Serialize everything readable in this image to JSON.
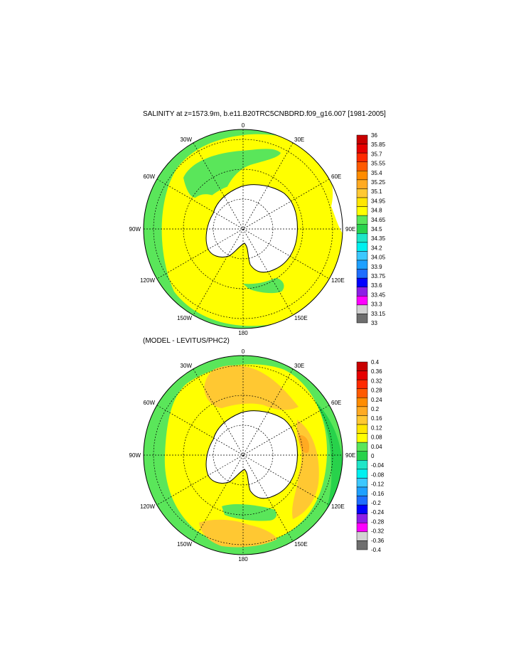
{
  "panels": [
    {
      "title": "SALINITY at z=1573.9m, b.e11.B20TRC5CNBDRD.f09_g16.007 [1981-2005]",
      "lon_labels": [
        "0",
        "30E",
        "60E",
        "90E",
        "120E",
        "150E",
        "180",
        "150W",
        "120W",
        "90W",
        "60W",
        "30W"
      ],
      "colorbar": {
        "labels": [
          "36",
          "35.85",
          "35.7",
          "35.55",
          "35.4",
          "35.25",
          "35.1",
          "34.95",
          "34.8",
          "34.65",
          "34.5",
          "34.35",
          "34.2",
          "34.05",
          "33.9",
          "33.75",
          "33.6",
          "33.45",
          "33.3",
          "33.15",
          "33"
        ],
        "colors": [
          "#c80000",
          "#e60000",
          "#ff2a00",
          "#ff5a00",
          "#ff8c00",
          "#ffaa22",
          "#ffc832",
          "#ffe600",
          "#ffff00",
          "#5ae65a",
          "#28d24b",
          "#1ee6c8",
          "#00f0f0",
          "#3cc8ff",
          "#1ea0ff",
          "#1e6eff",
          "#0000ff",
          "#8c1ee6",
          "#ff00ff",
          "#d2d2d2",
          "#6e6e6e"
        ]
      }
    },
    {
      "title": "(MODEL - LEVITUS/PHC2)",
      "lon_labels": [
        "0",
        "30E",
        "60E",
        "90E",
        "120E",
        "150E",
        "180",
        "150W",
        "120W",
        "90W",
        "60W",
        "30W"
      ],
      "colorbar": {
        "labels": [
          "0.4",
          "0.36",
          "0.32",
          "0.28",
          "0.24",
          "0.2",
          "0.16",
          "0.12",
          "0.08",
          "0.04",
          "0",
          "-0.04",
          "-0.08",
          "-0.12",
          "-0.16",
          "-0.2",
          "-0.24",
          "-0.28",
          "-0.32",
          "-0.36",
          "-0.4"
        ],
        "colors": [
          "#c80000",
          "#e60000",
          "#ff2a00",
          "#ff5a00",
          "#ff8c00",
          "#ffaa22",
          "#ffc832",
          "#ffe600",
          "#ffff00",
          "#5ae65a",
          "#28d24b",
          "#1ee6c8",
          "#00f0f0",
          "#3cc8ff",
          "#1ea0ff",
          "#1e6eff",
          "#0000ff",
          "#8c1ee6",
          "#ff00ff",
          "#d2d2d2",
          "#6e6e6e"
        ]
      }
    }
  ]
}
